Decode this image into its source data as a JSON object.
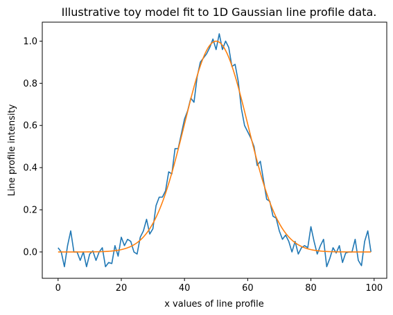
{
  "chart_data": {
    "type": "line",
    "title": "Illustrative toy model fit to 1D Gaussian line profile data.",
    "xlabel": "x values of line profile",
    "ylabel": "Line profile intensity",
    "xlim": [
      -5,
      104
    ],
    "ylim": [
      -0.125,
      1.09
    ],
    "xticks": [
      0,
      20,
      40,
      60,
      80,
      100
    ],
    "yticks": [
      0.0,
      0.2,
      0.4,
      0.6,
      0.8,
      1.0
    ],
    "xtick_labels": [
      "0",
      "20",
      "40",
      "60",
      "80",
      "100"
    ],
    "ytick_labels": [
      "0.0",
      "0.2",
      "0.4",
      "0.6",
      "0.8",
      "1.0"
    ],
    "grid": false,
    "series": [
      {
        "color": "#1f77b4",
        "x": [
          0,
          1,
          2,
          3,
          4,
          5,
          6,
          7,
          8,
          9,
          10,
          11,
          12,
          13,
          14,
          15,
          16,
          17,
          18,
          19,
          20,
          21,
          22,
          23,
          24,
          25,
          26,
          27,
          28,
          29,
          30,
          31,
          32,
          33,
          34,
          35,
          36,
          37,
          38,
          39,
          40,
          41,
          42,
          43,
          44,
          45,
          46,
          47,
          48,
          49,
          50,
          51,
          52,
          53,
          54,
          55,
          56,
          57,
          58,
          59,
          60,
          61,
          62,
          63,
          64,
          65,
          66,
          67,
          68,
          69,
          70,
          71,
          72,
          73,
          74,
          75,
          76,
          77,
          78,
          79,
          80,
          81,
          82,
          83,
          84,
          85,
          86,
          87,
          88,
          89,
          90,
          91,
          92,
          93,
          94,
          95,
          96,
          97,
          98,
          99
        ],
        "y": [
          0.02,
          0.0,
          -0.07,
          0.03,
          0.1,
          0.0,
          0.0,
          -0.04,
          0.0,
          -0.07,
          -0.01,
          0.005,
          -0.04,
          0.0,
          0.02,
          -0.07,
          -0.05,
          -0.055,
          0.03,
          -0.02,
          0.07,
          0.03,
          0.06,
          0.05,
          0.0,
          -0.01,
          0.07,
          0.1,
          0.155,
          0.085,
          0.11,
          0.22,
          0.26,
          0.26,
          0.29,
          0.38,
          0.37,
          0.49,
          0.49,
          0.56,
          0.63,
          0.67,
          0.73,
          0.71,
          0.83,
          0.9,
          0.92,
          0.94,
          0.97,
          1.01,
          0.96,
          1.035,
          0.96,
          1.0,
          0.97,
          0.88,
          0.89,
          0.81,
          0.68,
          0.6,
          0.57,
          0.54,
          0.5,
          0.41,
          0.43,
          0.34,
          0.25,
          0.24,
          0.17,
          0.16,
          0.1,
          0.06,
          0.08,
          0.05,
          0.0,
          0.05,
          -0.01,
          0.02,
          0.03,
          0.02,
          0.12,
          0.05,
          -0.01,
          0.03,
          0.06,
          -0.07,
          -0.03,
          0.02,
          -0.005,
          0.03,
          -0.05,
          -0.005,
          0.0,
          0.0,
          0.06,
          -0.04,
          -0.065,
          0.05,
          0.1,
          0.0
        ]
      },
      {
        "color": "#ff7f0e",
        "model": "gaussian",
        "amplitude": 1.0,
        "center": 50,
        "sigma": 10,
        "x_range": [
          0,
          99
        ]
      }
    ]
  }
}
